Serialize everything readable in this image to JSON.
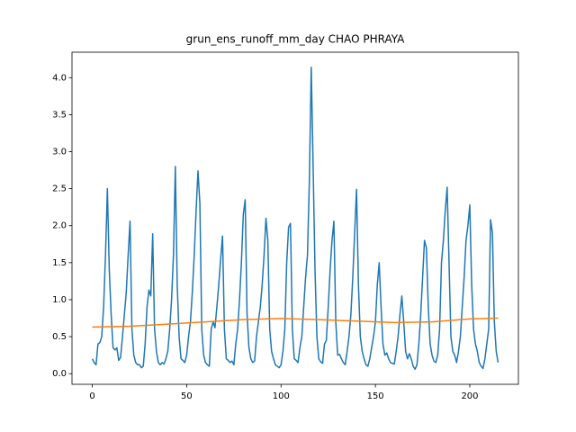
{
  "chart_data": {
    "type": "line",
    "title": "grun_ens_runoff_mm_day CHAO PHRAYA",
    "x": [
      0,
      1,
      2,
      3,
      4,
      5,
      6,
      7,
      8,
      9,
      10,
      11,
      12,
      13,
      14,
      15,
      16,
      17,
      18,
      19,
      20,
      21,
      22,
      23,
      24,
      25,
      26,
      27,
      28,
      29,
      30,
      31,
      32,
      33,
      34,
      35,
      36,
      37,
      38,
      39,
      40,
      41,
      42,
      43,
      44,
      45,
      46,
      47,
      48,
      49,
      50,
      51,
      52,
      53,
      54,
      55,
      56,
      57,
      58,
      59,
      60,
      61,
      62,
      63,
      64,
      65,
      66,
      67,
      68,
      69,
      70,
      71,
      72,
      73,
      74,
      75,
      76,
      77,
      78,
      79,
      80,
      81,
      82,
      83,
      84,
      85,
      86,
      87,
      88,
      89,
      90,
      91,
      92,
      93,
      94,
      95,
      96,
      97,
      98,
      99,
      100,
      101,
      102,
      103,
      104,
      105,
      106,
      107,
      108,
      109,
      110,
      111,
      112,
      113,
      114,
      115,
      116,
      117,
      118,
      119,
      120,
      121,
      122,
      123,
      124,
      125,
      126,
      127,
      128,
      129,
      130,
      131,
      132,
      133,
      134,
      135,
      136,
      137,
      138,
      139,
      140,
      141,
      142,
      143,
      144,
      145,
      146,
      147,
      148,
      149,
      150,
      151,
      152,
      153,
      154,
      155,
      156,
      157,
      158,
      159,
      160,
      161,
      162,
      163,
      164,
      165,
      166,
      167,
      168,
      169,
      170,
      171,
      172,
      173,
      174,
      175,
      176,
      177,
      178,
      179,
      180,
      181,
      182,
      183,
      184,
      185,
      186,
      187,
      188,
      189,
      190,
      191,
      192,
      193,
      194,
      195,
      196,
      197,
      198,
      199,
      200,
      201,
      202,
      203,
      204,
      205,
      206,
      207,
      208,
      209,
      210,
      211,
      212,
      213,
      214,
      215
    ],
    "series": [
      {
        "color": "#1f77b4",
        "values": [
          0.2,
          0.15,
          0.12,
          0.4,
          0.42,
          0.5,
          0.9,
          1.6,
          2.5,
          1.4,
          0.8,
          0.35,
          0.32,
          0.35,
          0.18,
          0.22,
          0.5,
          0.8,
          1.1,
          1.6,
          2.06,
          0.6,
          0.25,
          0.15,
          0.12,
          0.12,
          0.08,
          0.1,
          0.4,
          0.9,
          1.13,
          1.05,
          1.89,
          0.6,
          0.3,
          0.15,
          0.12,
          0.15,
          0.13,
          0.2,
          0.3,
          0.6,
          1.0,
          1.6,
          2.8,
          1.2,
          0.5,
          0.2,
          0.18,
          0.15,
          0.25,
          0.5,
          0.7,
          1.1,
          1.6,
          2.2,
          2.74,
          2.3,
          0.6,
          0.25,
          0.15,
          0.12,
          0.1,
          0.6,
          0.7,
          0.62,
          0.9,
          1.2,
          1.55,
          1.86,
          0.6,
          0.2,
          0.18,
          0.15,
          0.17,
          0.12,
          0.4,
          0.6,
          1.0,
          1.5,
          2.15,
          2.35,
          0.8,
          0.35,
          0.2,
          0.15,
          0.17,
          0.5,
          0.7,
          0.9,
          1.2,
          1.6,
          2.1,
          1.8,
          0.6,
          0.3,
          0.2,
          0.12,
          0.1,
          0.08,
          0.12,
          0.3,
          0.6,
          1.5,
          1.98,
          2.03,
          0.6,
          0.2,
          0.18,
          0.15,
          0.35,
          0.5,
          0.9,
          1.3,
          1.6,
          2.6,
          4.14,
          2.8,
          1.4,
          0.5,
          0.2,
          0.16,
          0.14,
          0.4,
          0.45,
          0.9,
          1.4,
          1.8,
          2.06,
          0.7,
          0.25,
          0.26,
          0.2,
          0.15,
          0.12,
          0.3,
          0.5,
          0.8,
          1.3,
          1.9,
          2.49,
          1.2,
          0.5,
          0.3,
          0.2,
          0.12,
          0.1,
          0.2,
          0.35,
          0.5,
          0.7,
          1.2,
          1.5,
          0.9,
          0.4,
          0.25,
          0.28,
          0.2,
          0.15,
          0.14,
          0.13,
          0.3,
          0.5,
          0.8,
          1.05,
          0.7,
          0.3,
          0.2,
          0.27,
          0.2,
          0.1,
          0.06,
          0.12,
          0.4,
          0.8,
          1.3,
          1.8,
          1.7,
          0.9,
          0.4,
          0.25,
          0.17,
          0.15,
          0.25,
          0.6,
          1.5,
          1.8,
          2.2,
          2.52,
          1.5,
          0.5,
          0.3,
          0.25,
          0.15,
          0.3,
          0.5,
          0.9,
          1.3,
          1.8,
          2.0,
          2.28,
          1.2,
          0.6,
          0.4,
          0.3,
          0.15,
          0.1,
          0.07,
          0.2,
          0.4,
          0.6,
          2.08,
          1.9,
          0.7,
          0.3,
          0.15
        ]
      },
      {
        "color": "#ff7f0e",
        "x": [
          0,
          20,
          40,
          60,
          80,
          100,
          120,
          140,
          160,
          180,
          200,
          215
        ],
        "values": [
          0.63,
          0.64,
          0.67,
          0.7,
          0.73,
          0.745,
          0.73,
          0.71,
          0.69,
          0.7,
          0.74,
          0.75
        ]
      }
    ],
    "xlim": [
      -10.75,
      225.75
    ],
    "ylim": [
      -0.144,
      4.344
    ],
    "xticks": [
      0,
      50,
      100,
      150,
      200
    ],
    "yticks": [
      {
        "value": 0,
        "label": "0.0"
      },
      0.5,
      {
        "value": 1,
        "label": "1.0"
      },
      1.5,
      {
        "value": 2,
        "label": "2.0"
      },
      2.5,
      {
        "value": 3,
        "label": "3.0"
      },
      3.5,
      {
        "value": 4,
        "label": "4.0"
      }
    ]
  }
}
